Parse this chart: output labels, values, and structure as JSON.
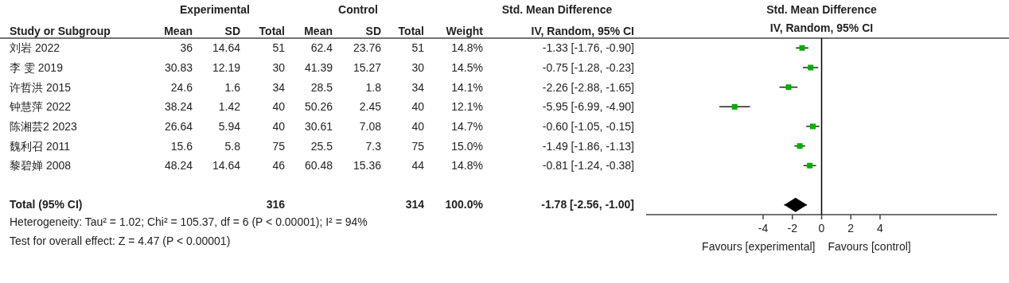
{
  "chart_data": [
    {
      "type": "other",
      "annotations": [
        "Experimental",
        "Control",
        "Std. Mean Difference",
        "Study or Subgroup",
        "Mean",
        "SD",
        "Total",
        "Mean",
        "SD",
        "Total",
        "Weight",
        "IV, Random, 95% CI",
        "刘岩 2022",
        "36",
        "14.64",
        "51",
        "62.4",
        "23.76",
        "51",
        "14.8%",
        "-1.33 [-1.76, -0.90]",
        "李 雯 2019",
        "30.83",
        "12.19",
        "30",
        "41.39",
        "15.27",
        "30",
        "14.5%",
        "-0.75 [-1.28, -0.23]",
        "许哲洪 2015",
        "24.6",
        "1.6",
        "34",
        "28.5",
        "1.8",
        "34",
        "14.1%",
        "-2.26 [-2.88, -1.65]",
        "钟慧萍 2022",
        "38.24",
        "1.42",
        "40",
        "50.26",
        "2.45",
        "40",
        "12.1%",
        "-5.95 [-6.99, -4.90]",
        "陈湘芸2 2023",
        "26.64",
        "5.94",
        "40",
        "30.61",
        "7.08",
        "40",
        "14.7%",
        "-0.60 [-1.05, -0.15]",
        "魏利召 2011",
        "15.6",
        "5.8",
        "75",
        "25.5",
        "7.3",
        "75",
        "15.0%",
        "-1.49 [-1.86, -1.13]",
        "黎碧婵 2008",
        "48.24",
        "14.64",
        "46",
        "60.48",
        "15.36",
        "44",
        "14.8%",
        "-0.81 [-1.24, -0.38]",
        "Total (95% CI)",
        "316",
        "314",
        "100.0%",
        "-1.78 [-2.56, -1.00]",
        "Heterogeneity: Tau² = 1.02; Chi² = 105.37, df = 6 (P < 0.00001); I² = 94%",
        "Test for overall effect: Z = 4.47 (P < 0.00001)"
      ]
    },
    {
      "type": "scatter",
      "title": "Std. Mean Difference",
      "subtitle": "IV, Random, 95% CI",
      "orientation": "horizontal",
      "categories": [
        null,
        null,
        null,
        null,
        null,
        null,
        null,
        null,
        null
      ],
      "series": [
        {
          "color": "#00b000",
          "marker": "square",
          "values": [
            -1.33,
            -0.75,
            -2.26,
            -5.95,
            -0.6,
            -1.49,
            -0.81,
            null,
            null
          ],
          "errors": [
            [
              -1.76,
              -0.9
            ],
            [
              -1.28,
              -0.23
            ],
            [
              -2.88,
              -1.65
            ],
            [
              -6.99,
              -4.9
            ],
            [
              -1.05,
              -0.15
            ],
            [
              -1.86,
              -1.13
            ],
            [
              -1.24,
              -0.38
            ],
            null,
            null
          ]
        },
        {
          "color": "#000000",
          "marker": "diamond",
          "values": [
            null,
            null,
            null,
            null,
            null,
            null,
            null,
            null,
            -1.78
          ],
          "errors": [
            null,
            null,
            null,
            null,
            null,
            null,
            null,
            null,
            [
              -2.56,
              -1.0
            ]
          ]
        }
      ],
      "xlim": [
        -12,
        12
      ],
      "xticks": [
        -4,
        -2,
        0,
        2,
        4
      ],
      "tick_labels": "x",
      "grid": false,
      "ref_lines": [
        {
          "axis": "x",
          "value": 0,
          "color": "#000000"
        }
      ],
      "annotations": [
        "Favours [experimental]",
        "Favours [control]"
      ]
    }
  ]
}
